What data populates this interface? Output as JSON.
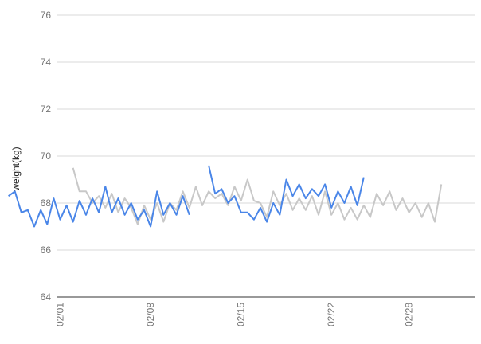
{
  "chart_data": {
    "type": "line",
    "title": "",
    "xlabel": "",
    "ylabel": "weight(kg)",
    "ylim": [
      64,
      76
    ],
    "yticks": [
      64,
      66,
      68,
      70,
      72,
      74,
      76
    ],
    "x_day_range": [
      1,
      32
    ],
    "xticks": [
      {
        "day": 1,
        "label": "02/01"
      },
      {
        "day": 8,
        "label": "02/08"
      },
      {
        "day": 15,
        "label": "02/15"
      },
      {
        "day": 22,
        "label": "02/22"
      },
      {
        "day": 28,
        "label": "02/28"
      }
    ],
    "grid": "horizontal",
    "legend": "none",
    "series": [
      {
        "color": "#c8c8c8",
        "points": [
          [
            2.0,
            69.5
          ],
          [
            2.5,
            68.5
          ],
          [
            3.0,
            68.5
          ],
          [
            3.5,
            68.0
          ],
          [
            4.0,
            68.3
          ],
          [
            4.5,
            67.8
          ],
          [
            5.0,
            68.4
          ],
          [
            5.5,
            67.6
          ],
          [
            6.0,
            68.2
          ],
          [
            6.5,
            67.8
          ],
          [
            7.0,
            67.1
          ],
          [
            7.5,
            67.9
          ],
          [
            8.0,
            67.3
          ],
          [
            8.5,
            68.0
          ],
          [
            9.0,
            67.2
          ],
          [
            9.5,
            68.0
          ],
          [
            10.0,
            67.7
          ],
          [
            10.5,
            68.5
          ],
          [
            11.0,
            67.8
          ],
          [
            11.5,
            68.7
          ],
          [
            12.0,
            67.9
          ],
          [
            12.5,
            68.5
          ],
          [
            13.0,
            68.2
          ],
          [
            13.5,
            68.4
          ],
          [
            14.0,
            67.9
          ],
          [
            14.5,
            68.7
          ],
          [
            15.0,
            68.1
          ],
          [
            15.5,
            69.0
          ],
          [
            16.0,
            68.1
          ],
          [
            16.5,
            68.0
          ],
          [
            17.0,
            67.4
          ],
          [
            17.5,
            68.5
          ],
          [
            18.0,
            67.9
          ],
          [
            18.5,
            68.4
          ],
          [
            19.0,
            67.7
          ],
          [
            19.5,
            68.2
          ],
          [
            20.0,
            67.7
          ],
          [
            20.5,
            68.3
          ],
          [
            21.0,
            67.5
          ],
          [
            21.5,
            68.5
          ],
          [
            22.0,
            67.5
          ],
          [
            22.5,
            68.0
          ],
          [
            23.0,
            67.3
          ],
          [
            23.5,
            67.8
          ],
          [
            24.0,
            67.3
          ],
          [
            24.5,
            67.9
          ],
          [
            25.0,
            67.4
          ],
          [
            25.5,
            68.4
          ],
          [
            26.0,
            67.9
          ],
          [
            26.5,
            68.5
          ],
          [
            27.0,
            67.7
          ],
          [
            27.5,
            68.2
          ],
          [
            28.0,
            67.6
          ],
          [
            28.5,
            68.0
          ],
          [
            29.0,
            67.4
          ],
          [
            29.5,
            68.0
          ],
          [
            30.0,
            67.2
          ],
          [
            30.5,
            68.8
          ]
        ]
      },
      {
        "color": "#4a86e8",
        "points": [
          [
            -3.0,
            68.3
          ],
          [
            -2.5,
            68.5
          ],
          [
            -2.0,
            67.6
          ],
          [
            -1.5,
            67.7
          ],
          [
            -1.0,
            67.0
          ],
          [
            -0.5,
            67.7
          ],
          [
            0.0,
            67.1
          ],
          [
            0.5,
            68.2
          ],
          [
            1.0,
            67.3
          ],
          [
            1.5,
            67.9
          ],
          [
            2.0,
            67.2
          ],
          [
            2.5,
            68.1
          ],
          [
            3.0,
            67.5
          ],
          [
            3.5,
            68.2
          ],
          [
            4.0,
            67.6
          ],
          [
            4.5,
            68.7
          ],
          [
            5.0,
            67.6
          ],
          [
            5.5,
            68.2
          ],
          [
            6.0,
            67.5
          ],
          [
            6.5,
            68.0
          ],
          [
            7.0,
            67.3
          ],
          [
            7.5,
            67.7
          ],
          [
            8.0,
            67.0
          ],
          [
            8.5,
            68.5
          ],
          [
            9.0,
            67.5
          ],
          [
            9.5,
            68.0
          ],
          [
            10.0,
            67.5
          ],
          [
            10.5,
            68.3
          ],
          [
            11.0,
            67.5
          ],
          null,
          [
            12.5,
            69.6
          ],
          [
            13.0,
            68.4
          ],
          [
            13.5,
            68.6
          ],
          [
            14.0,
            68.0
          ],
          [
            14.5,
            68.3
          ],
          [
            15.0,
            67.6
          ],
          [
            15.5,
            67.6
          ],
          [
            16.0,
            67.3
          ],
          [
            16.5,
            67.8
          ],
          [
            17.0,
            67.2
          ],
          [
            17.5,
            68.0
          ],
          [
            18.0,
            67.5
          ],
          [
            18.5,
            69.0
          ],
          [
            19.0,
            68.3
          ],
          [
            19.5,
            68.8
          ],
          [
            20.0,
            68.2
          ],
          [
            20.5,
            68.6
          ],
          [
            21.0,
            68.3
          ],
          [
            21.5,
            68.8
          ],
          [
            22.0,
            67.8
          ],
          [
            22.5,
            68.5
          ],
          [
            23.0,
            68.0
          ],
          [
            23.5,
            68.7
          ],
          [
            24.0,
            67.9
          ],
          [
            24.5,
            69.1
          ]
        ]
      }
    ]
  }
}
